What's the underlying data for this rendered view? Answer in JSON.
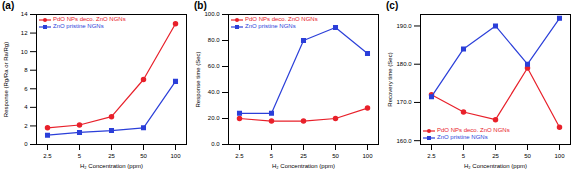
{
  "chart_data": [
    {
      "type": "line",
      "title": "(a)",
      "xlabel": "H₂ Concentration (ppm)",
      "ylabel": "Response (Rg/Ra or Ra/Rg)",
      "categories": [
        "2.5",
        "5",
        "25",
        "50",
        "100"
      ],
      "series": [
        {
          "name": "PdO NPs deco. ZnO NGNs",
          "color": "#e8202a",
          "marker": "circle",
          "values": [
            1.8,
            2.1,
            3,
            7,
            13
          ]
        },
        {
          "name": "ZnO pristine NGNs",
          "color": "#2b3fd9",
          "marker": "square",
          "values": [
            1,
            1.3,
            1.5,
            1.8,
            6.8
          ]
        }
      ],
      "ylim": [
        0,
        14
      ],
      "yticks": [
        0,
        2,
        4,
        6,
        8,
        10,
        12,
        14
      ],
      "grid": false,
      "legend": "upper left"
    },
    {
      "type": "line",
      "title": "(b)",
      "xlabel": "H₂ Concentration (ppm)",
      "ylabel": "Response time (Sec)",
      "categories": [
        "2.5",
        "5",
        "25",
        "50",
        "100"
      ],
      "series": [
        {
          "name": "PdO NPs deco. ZnO NGNs",
          "color": "#e8202a",
          "marker": "circle",
          "values": [
            20,
            18,
            18,
            20,
            28
          ]
        },
        {
          "name": "ZnO pristine NGNs",
          "color": "#2b3fd9",
          "marker": "square",
          "values": [
            24,
            24,
            80,
            90,
            70
          ]
        }
      ],
      "ylim": [
        0,
        100
      ],
      "yticks": [
        {
          "value": 0,
          "label": "0.0"
        },
        {
          "value": 20,
          "label": "20.0"
        },
        {
          "value": 40,
          "label": "40.0"
        },
        {
          "value": 60,
          "label": "60.0"
        },
        {
          "value": 80,
          "label": "80.0"
        },
        {
          "value": 100,
          "label": "100.0"
        }
      ],
      "grid": false,
      "legend": "upper left"
    },
    {
      "type": "line",
      "title": "(c)",
      "xlabel": "H₂ Concentration (ppm)",
      "ylabel": "Recovery time (Sec)",
      "categories": [
        "2.5",
        "5",
        "25",
        "50",
        "100"
      ],
      "series": [
        {
          "name": "PdO NPs deco. ZnO NGNs",
          "color": "#e8202a",
          "marker": "circle",
          "values": [
            172,
            167.5,
            165.5,
            179,
            163.5
          ]
        },
        {
          "name": "ZnO pristine NGNs",
          "color": "#2b3fd9",
          "marker": "square",
          "values": [
            171.5,
            184,
            190,
            180,
            192
          ]
        }
      ],
      "ylim": [
        159,
        193
      ],
      "yticks": [
        {
          "value": 160,
          "label": "160.0"
        },
        {
          "value": 170,
          "label": "170.0"
        },
        {
          "value": 180,
          "label": "180.0"
        },
        {
          "value": 190,
          "label": "190.0"
        }
      ],
      "grid": false,
      "legend": "lower left"
    }
  ]
}
